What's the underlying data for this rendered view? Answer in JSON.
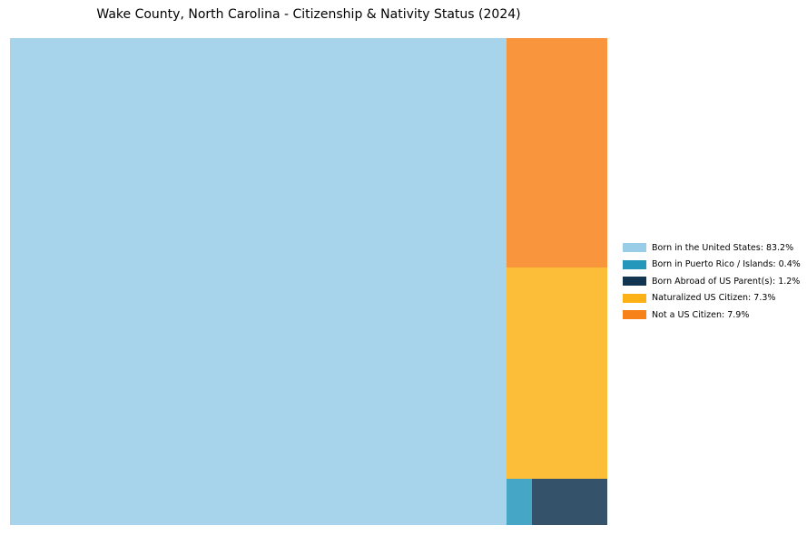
{
  "chart_data": {
    "type": "treemap",
    "title": "Wake County, North Carolina - Citizenship & Nativity Status (2024)",
    "value_suffix": "%",
    "legend_position": "right",
    "grid": false,
    "tile_opacity": 0.85,
    "items": [
      {
        "key": "born_us",
        "label": "Born in the United States",
        "value": 83.2,
        "color": "#99CCE7"
      },
      {
        "key": "born_pr",
        "label": "Born in Puerto Rico / Islands",
        "value": 0.4,
        "color": "#2597BB"
      },
      {
        "key": "born_abroad",
        "label": "Born Abroad of US Parent(s)",
        "value": 1.2,
        "color": "#113450"
      },
      {
        "key": "naturalized",
        "label": "Naturalized US Citizen",
        "value": 7.3,
        "color": "#FCB216"
      },
      {
        "key": "not_citizen",
        "label": "Not a US Citizen",
        "value": 7.9,
        "color": "#F8821A"
      }
    ]
  }
}
